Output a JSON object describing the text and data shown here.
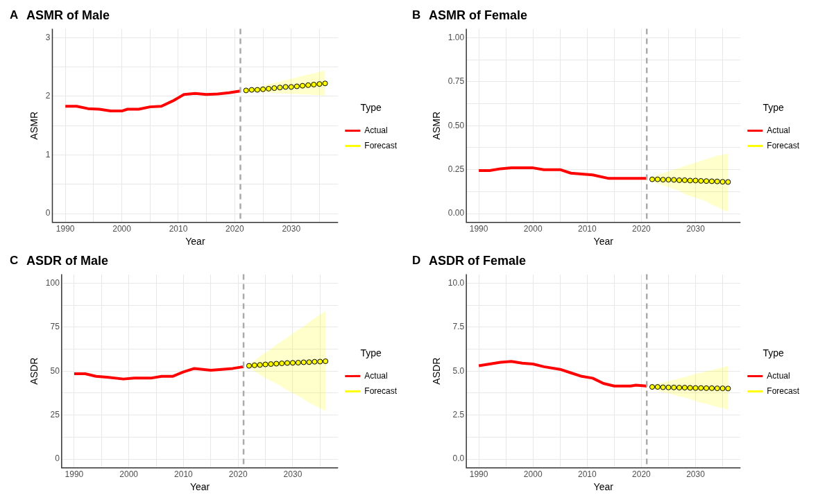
{
  "chart_data": [
    {
      "type": "line",
      "title": "ASMR of Male",
      "xlabel": "Year",
      "ylabel": "ASMR",
      "legend_title": "Type",
      "legend": "right",
      "grid": true,
      "annotations": [
        "A"
      ],
      "xlim": [
        1987.7,
        2038.3
      ],
      "xticks": [
        1990,
        {
          "value": 1995,
          "label": null
        },
        2000,
        {
          "value": 2005,
          "label": null
        },
        2010,
        {
          "value": 2015,
          "label": null
        },
        2020,
        {
          "value": 2025,
          "label": null
        },
        2030,
        {
          "value": 2035,
          "label": null
        }
      ],
      "ylim": [
        -0.15,
        3.15
      ],
      "yticks": [
        0,
        {
          "value": 0.5,
          "label": null
        },
        1,
        {
          "value": 1.5,
          "label": null
        },
        2,
        {
          "value": 2.5,
          "label": null
        },
        3
      ],
      "ref_lines": [
        {
          "axis": "x",
          "value": 2021,
          "color": "#aaaaaa",
          "line_style": "dashed"
        }
      ],
      "series": [
        {
          "name": "Actual",
          "color": "#ff0000",
          "marker": "none",
          "x": [
            1990,
            1992,
            1994,
            1996,
            1998,
            2000,
            2001,
            2003,
            2005,
            2007,
            2009,
            2011,
            2013,
            2015,
            2017,
            2019,
            2021
          ],
          "values": [
            1.83,
            1.83,
            1.79,
            1.78,
            1.75,
            1.75,
            1.78,
            1.78,
            1.82,
            1.83,
            1.92,
            2.03,
            2.05,
            2.03,
            2.04,
            2.06,
            2.09
          ]
        },
        {
          "name": "Forecast",
          "color": "#ffff00",
          "marker": "circle",
          "x": [
            2022,
            2023,
            2024,
            2025,
            2026,
            2027,
            2028,
            2029,
            2030,
            2031,
            2032,
            2033,
            2034,
            2035,
            2036
          ],
          "values": [
            2.1,
            2.11,
            2.11,
            2.12,
            2.13,
            2.14,
            2.15,
            2.16,
            2.16,
            2.17,
            2.18,
            2.19,
            2.2,
            2.21,
            2.22
          ],
          "lower": [
            2.08,
            2.08,
            2.07,
            2.07,
            2.06,
            2.06,
            2.05,
            2.05,
            2.04,
            2.04,
            2.03,
            2.03,
            2.02,
            2.02,
            2.01
          ],
          "upper": [
            2.12,
            2.14,
            2.16,
            2.18,
            2.21,
            2.23,
            2.25,
            2.28,
            2.3,
            2.32,
            2.35,
            2.37,
            2.39,
            2.42,
            2.44
          ]
        }
      ]
    },
    {
      "type": "line",
      "title": "ASMR of Female",
      "xlabel": "Year",
      "ylabel": "ASMR",
      "legend_title": "Type",
      "legend": "right",
      "grid": true,
      "annotations": [
        "B"
      ],
      "xlim": [
        1987.7,
        2038.3
      ],
      "xticks": [
        1990,
        {
          "value": 1995,
          "label": null
        },
        2000,
        {
          "value": 2005,
          "label": null
        },
        2010,
        {
          "value": 2015,
          "label": null
        },
        2020,
        {
          "value": 2025,
          "label": null
        },
        2030,
        {
          "value": 2035,
          "label": null
        }
      ],
      "ylim": [
        -0.05,
        1.05
      ],
      "yticks": [
        {
          "value": 0,
          "label": "0.00"
        },
        {
          "value": 0.125,
          "label": null
        },
        0.25,
        {
          "value": 0.375,
          "label": null
        },
        {
          "value": 0.5,
          "label": "0.50"
        },
        {
          "value": 0.625,
          "label": null
        },
        0.75,
        {
          "value": 0.875,
          "label": null
        },
        {
          "value": 1,
          "label": "1.00"
        }
      ],
      "ref_lines": [
        {
          "axis": "x",
          "value": 2021,
          "color": "#aaaaaa",
          "line_style": "dashed"
        }
      ],
      "series": [
        {
          "name": "Actual",
          "color": "#ff0000",
          "marker": "none",
          "x": [
            1990,
            1992,
            1994,
            1996,
            2000,
            2002,
            2005,
            2007,
            2009,
            2011,
            2014,
            2017,
            2021
          ],
          "values": [
            0.245,
            0.245,
            0.255,
            0.26,
            0.26,
            0.25,
            0.25,
            0.23,
            0.225,
            0.22,
            0.2,
            0.2,
            0.2
          ]
        },
        {
          "name": "Forecast",
          "color": "#ffff00",
          "marker": "circle",
          "x": [
            2022,
            2023,
            2024,
            2025,
            2026,
            2027,
            2028,
            2029,
            2030,
            2031,
            2032,
            2033,
            2034,
            2035,
            2036
          ],
          "values": [
            0.195,
            0.195,
            0.193,
            0.193,
            0.192,
            0.19,
            0.19,
            0.188,
            0.188,
            0.186,
            0.185,
            0.184,
            0.183,
            0.181,
            0.18
          ],
          "lower": [
            0.18,
            0.17,
            0.16,
            0.15,
            0.14,
            0.13,
            0.11,
            0.1,
            0.09,
            0.08,
            0.07,
            0.05,
            0.04,
            0.02,
            0.01
          ],
          "upper": [
            0.21,
            0.22,
            0.23,
            0.24,
            0.25,
            0.26,
            0.27,
            0.28,
            0.29,
            0.3,
            0.31,
            0.32,
            0.33,
            0.335,
            0.34
          ]
        }
      ]
    },
    {
      "type": "line",
      "title": "ASDR of Male",
      "xlabel": "Year",
      "ylabel": "ASDR",
      "legend_title": "Type",
      "legend": "right",
      "grid": true,
      "annotations": [
        "C"
      ],
      "xlim": [
        1987.7,
        2038.3
      ],
      "xticks": [
        1990,
        {
          "value": 1995,
          "label": null
        },
        2000,
        {
          "value": 2005,
          "label": null
        },
        2010,
        {
          "value": 2015,
          "label": null
        },
        2020,
        {
          "value": 2025,
          "label": null
        },
        2030,
        {
          "value": 2035,
          "label": null
        }
      ],
      "ylim": [
        -5,
        105
      ],
      "yticks": [
        0,
        {
          "value": 12.5,
          "label": null
        },
        25,
        {
          "value": 37.5,
          "label": null
        },
        50,
        {
          "value": 62.5,
          "label": null
        },
        75,
        {
          "value": 87.5,
          "label": null
        },
        100
      ],
      "ref_lines": [
        {
          "axis": "x",
          "value": 2021,
          "color": "#aaaaaa",
          "line_style": "dashed"
        }
      ],
      "series": [
        {
          "name": "Actual",
          "color": "#ff0000",
          "marker": "none",
          "x": [
            1990,
            1992,
            1994,
            1996,
            1999,
            2001,
            2004,
            2006,
            2008,
            2010,
            2012,
            2015,
            2017,
            2019,
            2021
          ],
          "values": [
            48.5,
            48.5,
            47,
            46.5,
            45.5,
            46,
            46,
            47,
            47,
            49.5,
            51.5,
            50.5,
            51,
            51.5,
            52.5
          ]
        },
        {
          "name": "Forecast",
          "color": "#ffff00",
          "marker": "circle",
          "x": [
            2022,
            2023,
            2024,
            2025,
            2026,
            2027,
            2028,
            2029,
            2030,
            2031,
            2032,
            2033,
            2034,
            2035,
            2036
          ],
          "values": [
            53,
            53.3,
            53.5,
            53.8,
            54,
            54.2,
            54.4,
            54.6,
            54.7,
            54.8,
            55,
            55.1,
            55.3,
            55.4,
            55.6
          ],
          "lower": [
            52,
            50,
            48,
            46,
            44.5,
            43,
            41,
            39,
            37.5,
            36,
            34,
            32,
            30.5,
            29,
            27
          ],
          "upper": [
            54,
            56,
            58.5,
            60.5,
            62.5,
            65,
            67,
            69,
            71.5,
            73.5,
            75.5,
            78,
            80,
            82,
            84
          ]
        }
      ]
    },
    {
      "type": "line",
      "title": "ASDR of Female",
      "xlabel": "Year",
      "ylabel": "ASDR",
      "legend_title": "Type",
      "legend": "right",
      "grid": true,
      "annotations": [
        "D"
      ],
      "xlim": [
        1987.7,
        2038.3
      ],
      "xticks": [
        1990,
        {
          "value": 1995,
          "label": null
        },
        2000,
        {
          "value": 2005,
          "label": null
        },
        2010,
        {
          "value": 2015,
          "label": null
        },
        2020,
        {
          "value": 2025,
          "label": null
        },
        2030,
        {
          "value": 2035,
          "label": null
        }
      ],
      "ylim": [
        -0.5,
        10.5
      ],
      "yticks": [
        {
          "value": 0,
          "label": "0.0"
        },
        {
          "value": 1.25,
          "label": null
        },
        2.5,
        {
          "value": 3.75,
          "label": null
        },
        {
          "value": 5,
          "label": "5.0"
        },
        {
          "value": 6.25,
          "label": null
        },
        7.5,
        {
          "value": 8.75,
          "label": null
        },
        {
          "value": 10,
          "label": "10.0"
        }
      ],
      "ref_lines": [
        {
          "axis": "x",
          "value": 2021,
          "color": "#aaaaaa",
          "line_style": "dashed"
        }
      ],
      "series": [
        {
          "name": "Actual",
          "color": "#ff0000",
          "marker": "none",
          "x": [
            1990,
            1992,
            1994,
            1996,
            1998,
            2000,
            2002,
            2005,
            2007,
            2009,
            2011,
            2013,
            2015,
            2018,
            2019,
            2021
          ],
          "values": [
            5.3,
            5.4,
            5.5,
            5.55,
            5.45,
            5.4,
            5.25,
            5.1,
            4.9,
            4.7,
            4.6,
            4.3,
            4.15,
            4.15,
            4.2,
            4.15
          ]
        },
        {
          "name": "Forecast",
          "color": "#ffff00",
          "marker": "circle",
          "x": [
            2022,
            2023,
            2024,
            2025,
            2026,
            2027,
            2028,
            2029,
            2030,
            2031,
            2032,
            2033,
            2034,
            2035,
            2036
          ],
          "values": [
            4.1,
            4.1,
            4.08,
            4.07,
            4.07,
            4.06,
            4.06,
            4.05,
            4.04,
            4.04,
            4.03,
            4.03,
            4.02,
            4.02,
            4.01
          ],
          "lower": [
            4.0,
            3.9,
            3.8,
            3.75,
            3.65,
            3.55,
            3.5,
            3.4,
            3.3,
            3.2,
            3.15,
            3.05,
            2.95,
            2.9,
            2.8
          ],
          "upper": [
            4.2,
            4.3,
            4.35,
            4.45,
            4.5,
            4.6,
            4.65,
            4.75,
            4.85,
            4.9,
            5.0,
            5.05,
            5.15,
            5.2,
            5.3
          ]
        }
      ]
    }
  ]
}
